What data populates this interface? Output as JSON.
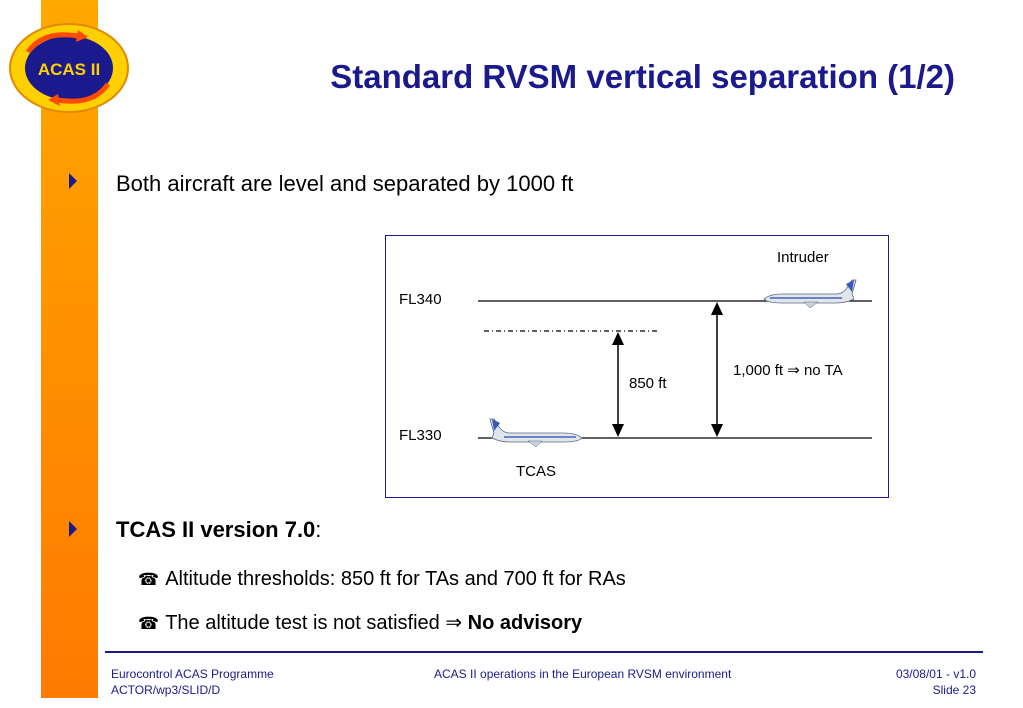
{
  "logo": {
    "text": "ACAS II"
  },
  "title": "Standard RVSM vertical separation (1/2)",
  "bullet1": "Both aircraft are level and separated by 1000 ft",
  "diagram": {
    "intruder_label": "Intruder",
    "fl_top": "FL340",
    "fl_bottom": "FL330",
    "threshold_label": "850 ft",
    "separation_label": "1,000 ft ⇒ no TA",
    "tcas_label": "TCAS"
  },
  "bullet2": {
    "bold": "TCAS II version 7.0",
    "colon": ":"
  },
  "sub1": {
    "icon": "☎",
    "text": "Altitude thresholds: 850 ft for TAs and 700 ft for RAs"
  },
  "sub2": {
    "icon": "☎",
    "text": "The altitude test is not satisfied ⇒ ",
    "bold": "No advisory"
  },
  "footer": {
    "left1": "Eurocontrol ACAS Programme",
    "left2": "ACTOR/wp3/SLID/D",
    "center": "ACAS II operations in the European RVSM environment",
    "right1": "03/08/01 - v1.0",
    "right2": "Slide 23"
  },
  "colors": {
    "accent": "#1a1a8c",
    "sidebar": "#ff8c00",
    "logo_fill": "#ffd000"
  }
}
